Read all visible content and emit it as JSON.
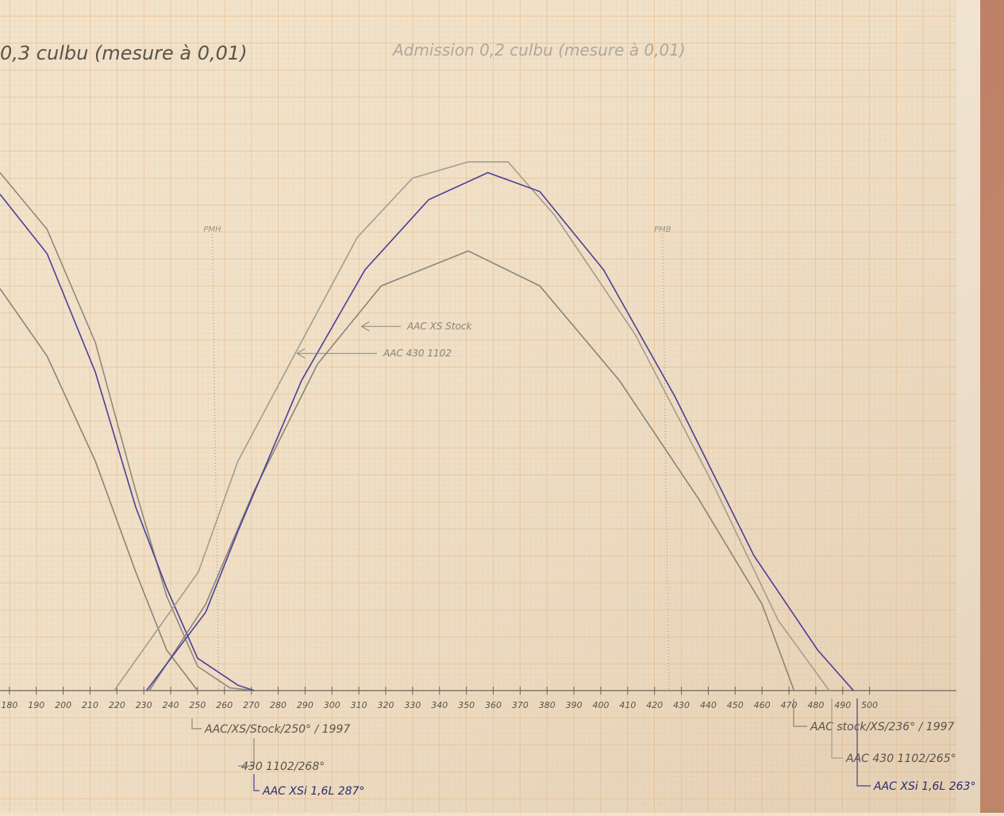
{
  "chart_data": {
    "type": "line",
    "titles": [
      "0,3 culbu (mesure à 0,01)",
      "Admission 0,2 culbu (mesure à 0,01)"
    ],
    "xlim": [
      176.5,
      550
    ],
    "ylim": [
      0,
      25.6
    ],
    "xticks": [
      180,
      190,
      200,
      210,
      220,
      230,
      240,
      250,
      260,
      270,
      280,
      290,
      300,
      310,
      320,
      330,
      340,
      350,
      360,
      370,
      380,
      390,
      400,
      410,
      420,
      430,
      440,
      450,
      460,
      470,
      480,
      490,
      500
    ],
    "vlines": [
      {
        "label": "PMH",
        "x": 255.5
      },
      {
        "label": "PMB",
        "x": 423
      }
    ],
    "arrows": [
      {
        "label": "AAC XS Stock",
        "x": 311,
        "y": 13.5
      },
      {
        "label": "AAC 430 1102",
        "x": 287,
        "y": 12.5
      }
    ],
    "series": [
      {
        "name": "AAC/XS/Stock/250° / 1997",
        "color": "#8a8478",
        "x": [
          176.5,
          194,
          212,
          227,
          238.5,
          250
        ],
        "values": [
          14.9,
          12.4,
          8.5,
          4.4,
          1.5,
          0
        ]
      },
      {
        "name": "430 1102/268°",
        "color": "#8f897c",
        "x": [
          176.5,
          194,
          212,
          227,
          238.5,
          250,
          262,
          271
        ],
        "values": [
          19.2,
          17.1,
          12.9,
          7.4,
          3.5,
          0.9,
          0.1,
          0
        ]
      },
      {
        "name": "AAC XSi 1,6L 287°",
        "color": "#4a3f9a",
        "x": [
          176.5,
          194,
          212,
          227,
          238.5,
          250,
          265,
          271
        ],
        "values": [
          18.4,
          16.2,
          11.8,
          6.8,
          3.8,
          1.2,
          0.2,
          0
        ]
      },
      {
        "name": "AAC stock/XS/236° / 1997",
        "color": "#8a8478",
        "x": [
          232,
          253,
          271,
          294.6,
          318.3,
          350.7,
          377.3,
          406.9,
          436.4,
          460,
          471.9
        ],
        "values": [
          0,
          3.2,
          7.4,
          12.1,
          15,
          16.3,
          15,
          11.5,
          7.1,
          3.2,
          0
        ]
      },
      {
        "name": "AAC 430 1102/265°",
        "color": "#a39d90",
        "x": [
          219,
          250.3,
          265,
          285.8,
          309.4,
          330,
          350.7,
          365.5,
          383,
          412.8,
          442,
          466,
          485
        ],
        "values": [
          0,
          4.4,
          8.5,
          12.4,
          16.8,
          19,
          19.6,
          19.6,
          17.6,
          13.2,
          7.6,
          2.6,
          0
        ]
      },
      {
        "name": "AAC XSi 1,6L 263°",
        "color": "#4a3f9a",
        "x": [
          231,
          253,
          265,
          288.7,
          312.3,
          336,
          358,
          377.3,
          401,
          427.6,
          457,
          480.7,
          494
        ],
        "values": [
          0,
          2.9,
          5.9,
          11.5,
          15.6,
          18.2,
          19.2,
          18.5,
          15.6,
          10.9,
          5,
          1.5,
          0
        ]
      }
    ]
  }
}
